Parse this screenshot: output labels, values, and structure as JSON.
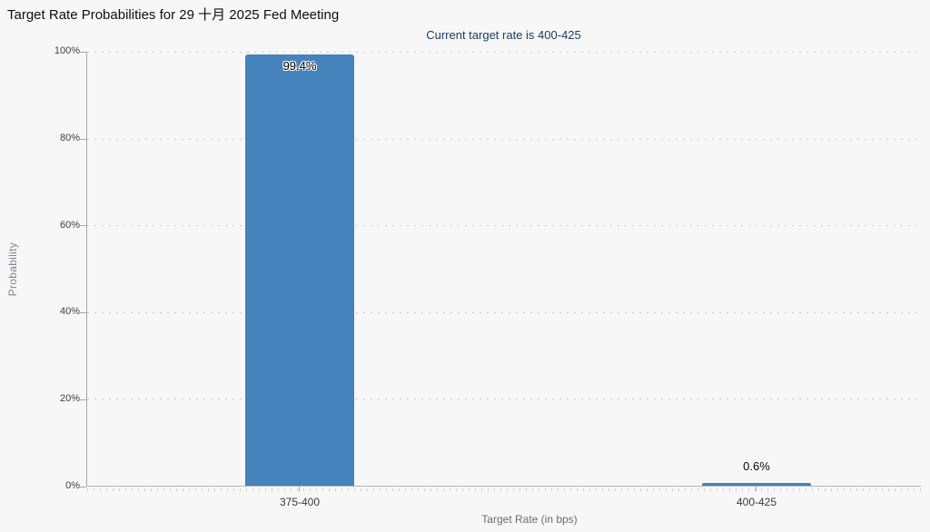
{
  "page": {
    "background": "#f7f7f7"
  },
  "header": {
    "title": "Target Rate Probabilities for 29 十月 2025 Fed Meeting",
    "subtitle": "Current target rate is 400-425"
  },
  "chart_data": {
    "type": "bar",
    "title": "Target Rate Probabilities for 29 十月 2025 Fed Meeting",
    "subtitle": "Current target rate is 400-425",
    "categories": [
      "375-400",
      "400-425"
    ],
    "values": [
      99.4,
      0.6
    ],
    "value_labels": [
      "99.4%",
      "0.6%"
    ],
    "xlabel": "Target Rate (in bps)",
    "ylabel": "Probability",
    "ylim": [
      0,
      100
    ],
    "yticks_top_to_bottom": [
      "100%",
      "80%",
      "60%",
      "40%",
      "20%",
      "0%"
    ],
    "grid": "horizontal-dotted",
    "legend": "none",
    "bar_color": "#4483bb"
  }
}
